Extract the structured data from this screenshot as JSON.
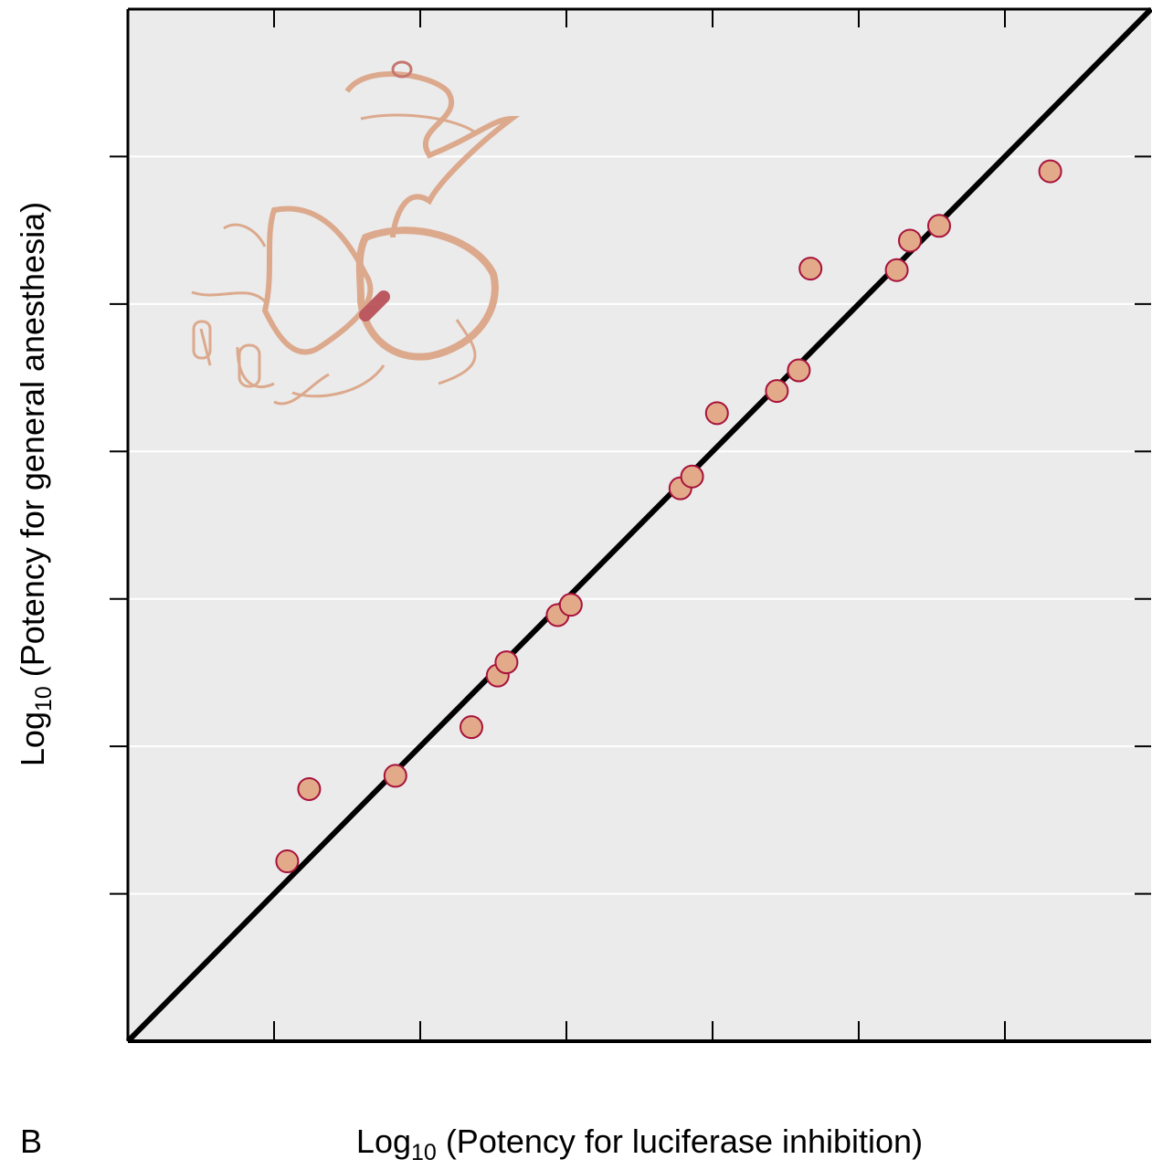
{
  "chart_data": {
    "type": "scatter",
    "panel_label": "B",
    "x_label": {
      "base": "Log",
      "subscript": "10",
      "text": "(Potency for luciferase inhibition)"
    },
    "y_label": {
      "base": "Log",
      "subscript": "10",
      "text": "(Potency for general anesthesia)"
    },
    "xlim": [
      0,
      7
    ],
    "ylim": [
      0,
      7
    ],
    "xticks": [
      1,
      2,
      3,
      4,
      5,
      6
    ],
    "yticks": [
      1,
      2,
      3,
      4,
      5,
      6
    ],
    "grid": true,
    "identity_line": true,
    "background": "#ebebeb",
    "point_color": "#e2aa88",
    "point_edge_color": "#a8123c",
    "x": [
      1.09,
      1.24,
      1.83,
      2.35,
      2.53,
      2.59,
      2.94,
      3.03,
      3.78,
      3.86,
      4.03,
      4.44,
      4.59,
      4.67,
      5.26,
      5.35,
      5.55,
      6.31
    ],
    "y": [
      1.22,
      1.71,
      1.8,
      2.13,
      2.48,
      2.57,
      2.89,
      2.96,
      3.75,
      3.83,
      4.26,
      4.41,
      4.55,
      5.24,
      5.23,
      5.43,
      5.53,
      5.9
    ]
  }
}
